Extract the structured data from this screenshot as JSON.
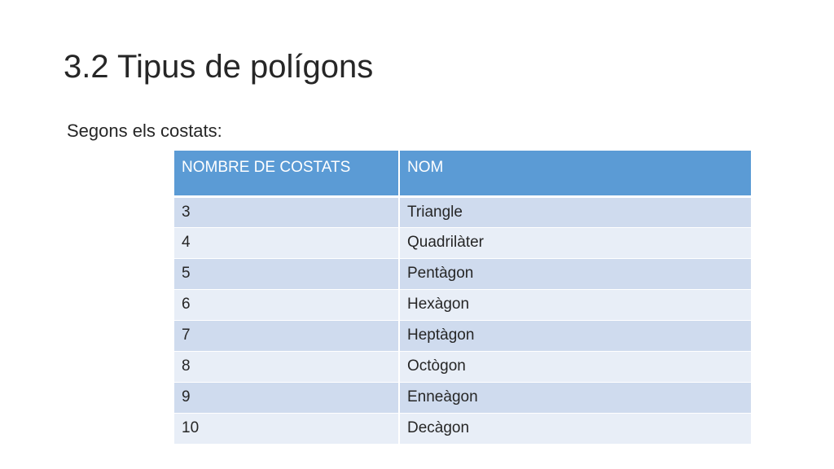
{
  "title": "3.2 Tipus de polígons",
  "subtitle": "Segons els costats:",
  "table": {
    "headers": [
      "NOMBRE DE COSTATS",
      "NOM"
    ],
    "rows": [
      [
        "3",
        "Triangle"
      ],
      [
        "4",
        "Quadrilàter"
      ],
      [
        "5",
        "Pentàgon"
      ],
      [
        "6",
        "Hexàgon"
      ],
      [
        "7",
        "Heptàgon"
      ],
      [
        "8",
        "Octògon"
      ],
      [
        "9",
        "Enneàgon"
      ],
      [
        "10",
        "Decàgon"
      ]
    ]
  },
  "colors": {
    "header_bg": "#5b9bd5",
    "row_odd_bg": "#cfdbee",
    "row_even_bg": "#e8eef7"
  }
}
